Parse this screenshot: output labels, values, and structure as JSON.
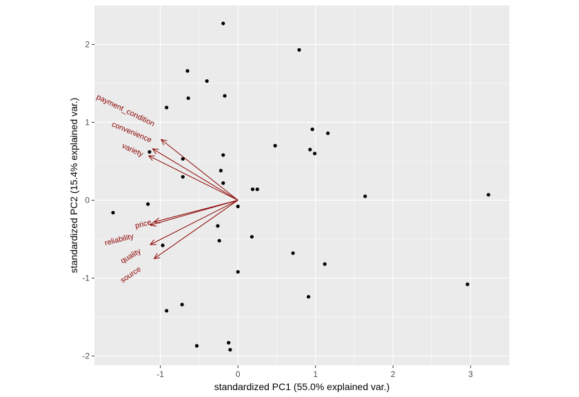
{
  "chart_data": {
    "type": "scatter",
    "subtype": "pca-biplot",
    "title": "",
    "xlabel": "standardized PC1 (55.0% explained var.)",
    "ylabel": "standardized PC2 (15.4% explained var.)",
    "xlim": [
      -1.85,
      3.5
    ],
    "ylim": [
      -2.12,
      2.5
    ],
    "x_ticks": [
      -1,
      0,
      1,
      2,
      3
    ],
    "x_tick_labels": [
      "-1",
      "0",
      "1",
      "2",
      "3"
    ],
    "y_ticks": [
      -2,
      -1,
      0,
      1,
      2
    ],
    "y_tick_labels": [
      "-2",
      "-1",
      "0",
      "1",
      "2"
    ],
    "grid": true,
    "theme": "ggplot-grey",
    "colors": {
      "panel": "#ebebeb",
      "grid": "#ffffff",
      "points": "#000000",
      "vectors": "#8b0000",
      "tick_text": "#4d4d4d"
    },
    "points": [
      [
        -0.19,
        2.27
      ],
      [
        0.79,
        1.93
      ],
      [
        -0.65,
        1.66
      ],
      [
        -0.4,
        1.53
      ],
      [
        -0.17,
        1.34
      ],
      [
        -0.64,
        1.31
      ],
      [
        -0.92,
        1.19
      ],
      [
        0.96,
        0.91
      ],
      [
        1.16,
        0.86
      ],
      [
        0.48,
        0.7
      ],
      [
        0.93,
        0.65
      ],
      [
        0.99,
        0.6
      ],
      [
        -1.14,
        0.62
      ],
      [
        -0.19,
        0.58
      ],
      [
        -0.71,
        0.53
      ],
      [
        -0.22,
        0.38
      ],
      [
        -0.71,
        0.3
      ],
      [
        -0.19,
        0.22
      ],
      [
        0.19,
        0.14
      ],
      [
        0.25,
        0.14
      ],
      [
        1.64,
        0.05
      ],
      [
        3.23,
        0.07
      ],
      [
        -1.16,
        -0.05
      ],
      [
        -1.61,
        -0.16
      ],
      [
        0.0,
        -0.08
      ],
      [
        -0.26,
        -0.33
      ],
      [
        0.18,
        -0.47
      ],
      [
        -0.24,
        -0.52
      ],
      [
        -0.97,
        -0.58
      ],
      [
        0.71,
        -0.68
      ],
      [
        1.12,
        -0.82
      ],
      [
        0.0,
        -0.92
      ],
      [
        2.96,
        -1.08
      ],
      [
        0.91,
        -1.24
      ],
      [
        -0.72,
        -1.34
      ],
      [
        -0.92,
        -1.42
      ],
      [
        -0.53,
        -1.87
      ],
      [
        -0.12,
        -1.83
      ],
      [
        -0.1,
        -1.92
      ]
    ],
    "vectors": [
      {
        "name": "payment_condition",
        "x": -0.99,
        "y": 0.78
      },
      {
        "name": "convenience",
        "x": -1.1,
        "y": 0.66
      },
      {
        "name": "variety",
        "x": -1.15,
        "y": 0.57
      },
      {
        "name": "price",
        "x": -1.08,
        "y": -0.28
      },
      {
        "name": "reliability",
        "x": -1.13,
        "y": -0.32
      },
      {
        "name": "quality",
        "x": -1.13,
        "y": -0.57
      },
      {
        "name": "source",
        "x": -1.08,
        "y": -0.75
      }
    ],
    "vector_labels": [
      {
        "text": "payment_condition",
        "x": -1.45,
        "y": 1.15,
        "angle": 26
      },
      {
        "text": "convenience",
        "x": -1.37,
        "y": 0.87,
        "angle": 23
      },
      {
        "text": "variety",
        "x": -1.36,
        "y": 0.64,
        "angle": 25
      },
      {
        "text": "reliability",
        "x": -1.53,
        "y": -0.51,
        "angle": -14
      },
      {
        "text": "price",
        "x": -1.22,
        "y": -0.31,
        "angle": -14
      },
      {
        "text": "quality",
        "x": -1.38,
        "y": -0.72,
        "angle": -30
      },
      {
        "text": "source",
        "x": -1.38,
        "y": -0.96,
        "angle": -34
      }
    ]
  }
}
